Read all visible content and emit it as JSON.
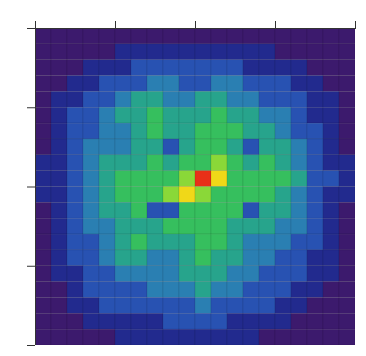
{
  "chart_data": {
    "type": "heatmap",
    "xlim": [
      0,
      20
    ],
    "xticks": [
      0,
      5,
      10,
      15,
      20
    ],
    "ylim": [
      20,
      0
    ],
    "yticks": [
      0,
      5,
      10,
      15,
      20
    ],
    "tick_labels": false,
    "color_range": [
      0,
      9
    ],
    "cells": [
      [
        0,
        0,
        0,
        0,
        0,
        0,
        0,
        0,
        0,
        0,
        0,
        0,
        0,
        0,
        0,
        0,
        0,
        0,
        0,
        0
      ],
      [
        0,
        0,
        0,
        0,
        0,
        1,
        1,
        1,
        1,
        1,
        1,
        1,
        1,
        1,
        1,
        0,
        0,
        0,
        0,
        0
      ],
      [
        0,
        0,
        0,
        1,
        1,
        1,
        2,
        2,
        2,
        2,
        2,
        2,
        2,
        1,
        1,
        1,
        1,
        0,
        0,
        0
      ],
      [
        0,
        0,
        1,
        1,
        2,
        2,
        2,
        3,
        3,
        2,
        2,
        3,
        3,
        2,
        2,
        2,
        1,
        1,
        0,
        0
      ],
      [
        0,
        1,
        1,
        2,
        2,
        3,
        4,
        4,
        3,
        3,
        4,
        4,
        3,
        3,
        2,
        2,
        2,
        1,
        1,
        0
      ],
      [
        0,
        1,
        2,
        2,
        3,
        4,
        4,
        5,
        4,
        4,
        4,
        5,
        4,
        4,
        3,
        3,
        2,
        1,
        1,
        0
      ],
      [
        0,
        1,
        2,
        2,
        3,
        3,
        4,
        5,
        4,
        4,
        5,
        5,
        5,
        4,
        4,
        3,
        2,
        2,
        1,
        0
      ],
      [
        0,
        1,
        2,
        3,
        3,
        3,
        4,
        4,
        2,
        4,
        5,
        5,
        4,
        2,
        4,
        4,
        3,
        2,
        1,
        0
      ],
      [
        1,
        1,
        2,
        3,
        4,
        4,
        4,
        5,
        4,
        5,
        5,
        6,
        5,
        4,
        5,
        4,
        3,
        2,
        1,
        1
      ],
      [
        1,
        1,
        2,
        3,
        4,
        5,
        5,
        5,
        5,
        6,
        8,
        7,
        5,
        5,
        5,
        5,
        4,
        2,
        2,
        1
      ],
      [
        1,
        1,
        2,
        3,
        4,
        5,
        5,
        5,
        6,
        7,
        6,
        5,
        5,
        5,
        5,
        4,
        3,
        2,
        1,
        1
      ],
      [
        0,
        1,
        2,
        3,
        4,
        4,
        5,
        2,
        2,
        5,
        5,
        5,
        5,
        2,
        4,
        4,
        3,
        2,
        1,
        0
      ],
      [
        0,
        1,
        2,
        3,
        3,
        4,
        4,
        4,
        5,
        5,
        5,
        5,
        4,
        4,
        4,
        3,
        3,
        2,
        1,
        0
      ],
      [
        0,
        1,
        2,
        2,
        3,
        4,
        5,
        4,
        4,
        4,
        5,
        5,
        4,
        3,
        3,
        3,
        2,
        2,
        1,
        0
      ],
      [
        0,
        1,
        2,
        2,
        3,
        4,
        4,
        3,
        3,
        4,
        5,
        4,
        4,
        3,
        3,
        2,
        2,
        1,
        1,
        0
      ],
      [
        0,
        1,
        1,
        2,
        2,
        3,
        3,
        3,
        3,
        4,
        4,
        4,
        3,
        3,
        2,
        2,
        2,
        1,
        1,
        0
      ],
      [
        0,
        0,
        1,
        2,
        2,
        2,
        2,
        3,
        3,
        3,
        4,
        3,
        3,
        2,
        2,
        2,
        1,
        1,
        0,
        0
      ],
      [
        0,
        0,
        1,
        1,
        2,
        2,
        2,
        2,
        2,
        2,
        3,
        2,
        2,
        2,
        2,
        1,
        1,
        0,
        0,
        0
      ],
      [
        0,
        0,
        0,
        1,
        1,
        1,
        1,
        1,
        2,
        2,
        2,
        2,
        1,
        1,
        1,
        1,
        0,
        0,
        0,
        0
      ],
      [
        0,
        0,
        0,
        0,
        0,
        1,
        1,
        1,
        1,
        1,
        1,
        1,
        1,
        1,
        0,
        0,
        0,
        0,
        0,
        0
      ]
    ]
  }
}
